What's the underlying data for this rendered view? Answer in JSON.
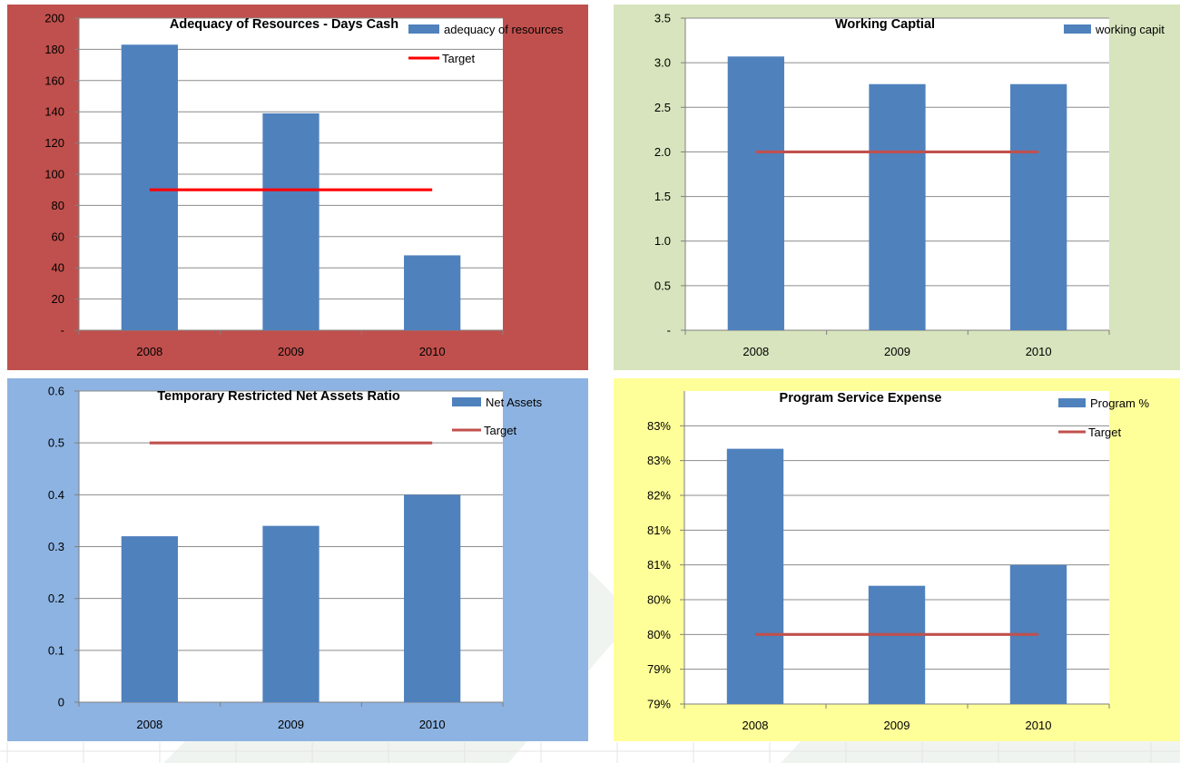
{
  "colors": {
    "bar": "#4f81bd",
    "target_bright": "#ff0000",
    "target_muted": "#c0504d",
    "plot_bg": "#ffffff",
    "grid": "#8c8c8c"
  },
  "chart_data": [
    {
      "id": "adequacy",
      "type": "bar",
      "title": "Adequacy of Resources - Days Cash",
      "panel_color": "#c0504d",
      "categories": [
        "2008",
        "2009",
        "2010"
      ],
      "series": [
        {
          "name": "adequacy of resources",
          "kind": "bar",
          "values": [
            183,
            139,
            48
          ]
        },
        {
          "name": "Target",
          "kind": "line",
          "values": [
            90,
            90,
            90
          ],
          "color": "#ff0000"
        }
      ],
      "ylim": [
        0,
        200
      ],
      "yticks": [
        {
          "v": 0,
          "label": "-"
        },
        {
          "v": 20,
          "label": "20"
        },
        {
          "v": 40,
          "label": "40"
        },
        {
          "v": 60,
          "label": "60"
        },
        {
          "v": 80,
          "label": "80"
        },
        {
          "v": 100,
          "label": "100"
        },
        {
          "v": 120,
          "label": "120"
        },
        {
          "v": 140,
          "label": "140"
        },
        {
          "v": 160,
          "label": "160"
        },
        {
          "v": 180,
          "label": "180"
        },
        {
          "v": 200,
          "label": "200"
        }
      ],
      "grid": true,
      "legend": "top-right"
    },
    {
      "id": "working",
      "type": "bar",
      "title": "Working Captial",
      "panel_color": "#d7e4bd",
      "categories": [
        "2008",
        "2009",
        "2010"
      ],
      "series": [
        {
          "name": "working capit",
          "kind": "bar",
          "values": [
            3.07,
            2.76,
            2.76
          ]
        },
        {
          "name": "",
          "kind": "line",
          "values": [
            2.0,
            2.0,
            2.0
          ],
          "color": "#c0504d"
        }
      ],
      "ylim": [
        0,
        3.5
      ],
      "yticks": [
        {
          "v": 0,
          "label": "-"
        },
        {
          "v": 0.5,
          "label": "0.5"
        },
        {
          "v": 1.0,
          "label": "1.0"
        },
        {
          "v": 1.5,
          "label": "1.5"
        },
        {
          "v": 2.0,
          "label": "2.0"
        },
        {
          "v": 2.5,
          "label": "2.5"
        },
        {
          "v": 3.0,
          "label": "3.0"
        },
        {
          "v": 3.5,
          "label": "3.5"
        }
      ],
      "grid": true,
      "legend": "top-right"
    },
    {
      "id": "temp",
      "type": "bar",
      "title": "Temporary Restricted Net Assets Ratio",
      "panel_color": "#8db3e2",
      "categories": [
        "2008",
        "2009",
        "2010"
      ],
      "series": [
        {
          "name": "Net Assets",
          "kind": "bar",
          "values": [
            0.32,
            0.34,
            0.4
          ]
        },
        {
          "name": "Target",
          "kind": "line",
          "values": [
            0.5,
            0.5,
            0.5
          ],
          "color": "#c0504d"
        }
      ],
      "ylim": [
        0,
        0.6
      ],
      "yticks": [
        {
          "v": 0,
          "label": "0"
        },
        {
          "v": 0.1,
          "label": "0.1"
        },
        {
          "v": 0.2,
          "label": "0.2"
        },
        {
          "v": 0.3,
          "label": "0.3"
        },
        {
          "v": 0.4,
          "label": "0.4"
        },
        {
          "v": 0.5,
          "label": "0.5"
        },
        {
          "v": 0.6,
          "label": "0.6"
        }
      ],
      "grid": true,
      "legend": "top-right"
    },
    {
      "id": "program",
      "type": "bar",
      "title": "Program Service Expense",
      "panel_color": "#ffff99",
      "categories": [
        "2008",
        "2009",
        "2010"
      ],
      "series": [
        {
          "name": "Program %",
          "kind": "bar",
          "values": [
            82.67,
            80.7,
            81.0
          ]
        },
        {
          "name": "Target",
          "kind": "line",
          "values": [
            80.0,
            80.0,
            80.0
          ],
          "color": "#c0504d"
        }
      ],
      "ylim": [
        79.0,
        83.5
      ],
      "yticks": [
        {
          "v": 79.0,
          "label": "79%"
        },
        {
          "v": 79.5,
          "label": "79%"
        },
        {
          "v": 80.0,
          "label": "80%"
        },
        {
          "v": 80.5,
          "label": "80%"
        },
        {
          "v": 81.0,
          "label": "81%"
        },
        {
          "v": 81.5,
          "label": "81%"
        },
        {
          "v": 82.0,
          "label": "82%"
        },
        {
          "v": 82.5,
          "label": "83%"
        },
        {
          "v": 83.0,
          "label": "83%"
        }
      ],
      "grid": true,
      "legend": "top-right"
    }
  ]
}
